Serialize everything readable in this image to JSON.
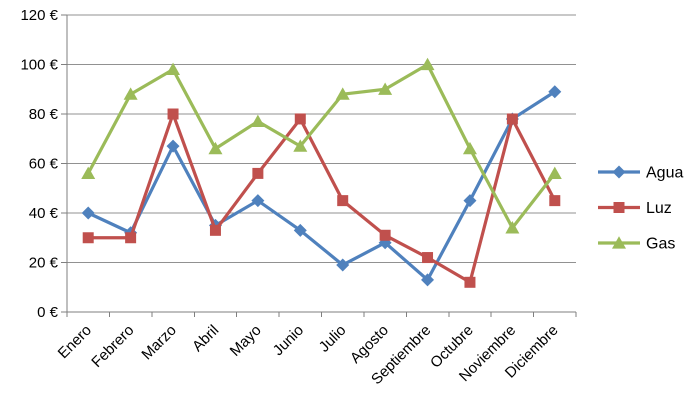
{
  "chart_data": {
    "type": "line",
    "title": "",
    "categories": [
      "Enero",
      "Febrero",
      "Marzo",
      "Abril",
      "Mayo",
      "Junio",
      "Julio",
      "Agosto",
      "Septiembre",
      "Octubre",
      "Noviembre",
      "Diciembre"
    ],
    "series": [
      {
        "name": "Agua",
        "color": "#4F81BD",
        "marker": "diamond",
        "values": [
          40,
          32,
          67,
          35,
          45,
          33,
          19,
          28,
          13,
          45,
          78,
          89
        ]
      },
      {
        "name": "Luz",
        "color": "#C0504D",
        "marker": "square",
        "values": [
          30,
          30,
          80,
          33,
          56,
          78,
          45,
          31,
          22,
          12,
          78,
          45
        ]
      },
      {
        "name": "Gas",
        "color": "#9BBB59",
        "marker": "triangle",
        "values": [
          56,
          88,
          98,
          66,
          77,
          67,
          88,
          90,
          100,
          66,
          34,
          56
        ]
      }
    ],
    "xlabel": "",
    "ylabel": "",
    "ylim": [
      0,
      120
    ],
    "ytick_step": 20,
    "y_tick_labels": [
      "0 €",
      "20 €",
      "40 €",
      "60 €",
      "80 €",
      "100 €",
      "120 €"
    ],
    "currency_suffix": " €",
    "grid": true,
    "legend_position": "right",
    "legend_entries": [
      "Agua",
      "Luz",
      "Gas"
    ],
    "colors": {
      "agua": "#4F81BD",
      "luz": "#C0504D",
      "gas": "#9BBB59",
      "gridline": "#919191",
      "axis": "#7F7F7F",
      "text": "#000000",
      "background": "#FFFFFF"
    }
  }
}
